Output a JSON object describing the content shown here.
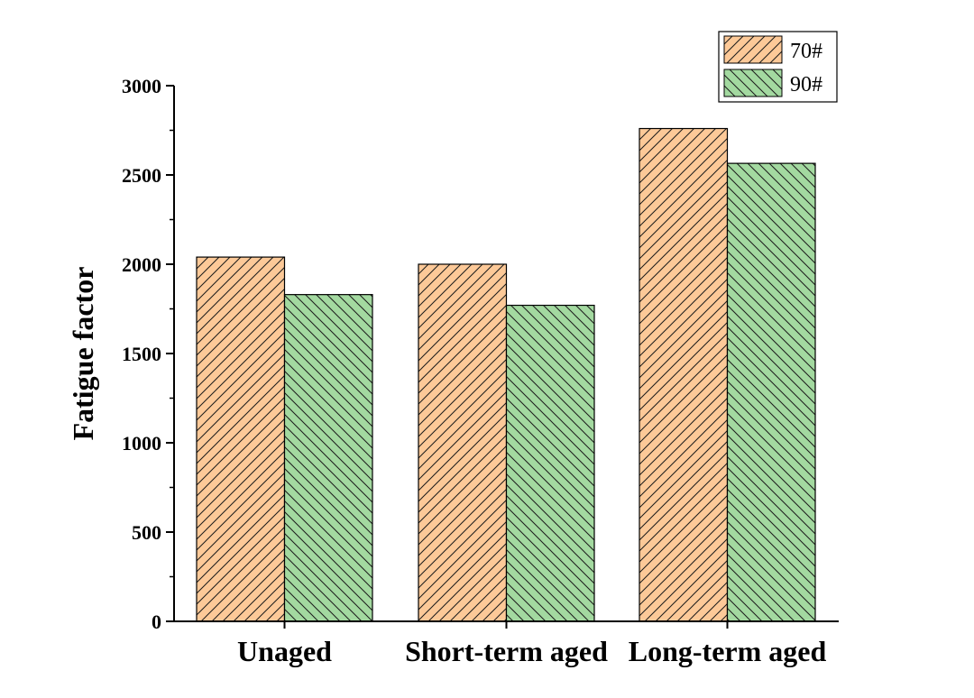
{
  "chart_data": {
    "type": "bar",
    "title": "",
    "xlabel": "",
    "ylabel": "Fatigue factor",
    "ylim": [
      0,
      3000
    ],
    "y_ticks": [
      0,
      500,
      1000,
      1500,
      2000,
      2500,
      3000
    ],
    "categories": [
      "Unaged",
      "Short-term aged",
      "Long-term aged"
    ],
    "series": [
      {
        "name": "70#",
        "values": [
          2040,
          2000,
          2760
        ],
        "color": "#fcc998",
        "hatch": "forward-diagonal"
      },
      {
        "name": "90#",
        "values": [
          1830,
          1770,
          2565
        ],
        "color": "#a3d9a0",
        "hatch": "backward-diagonal"
      }
    ],
    "legend_position": "top-right",
    "grid": false
  }
}
